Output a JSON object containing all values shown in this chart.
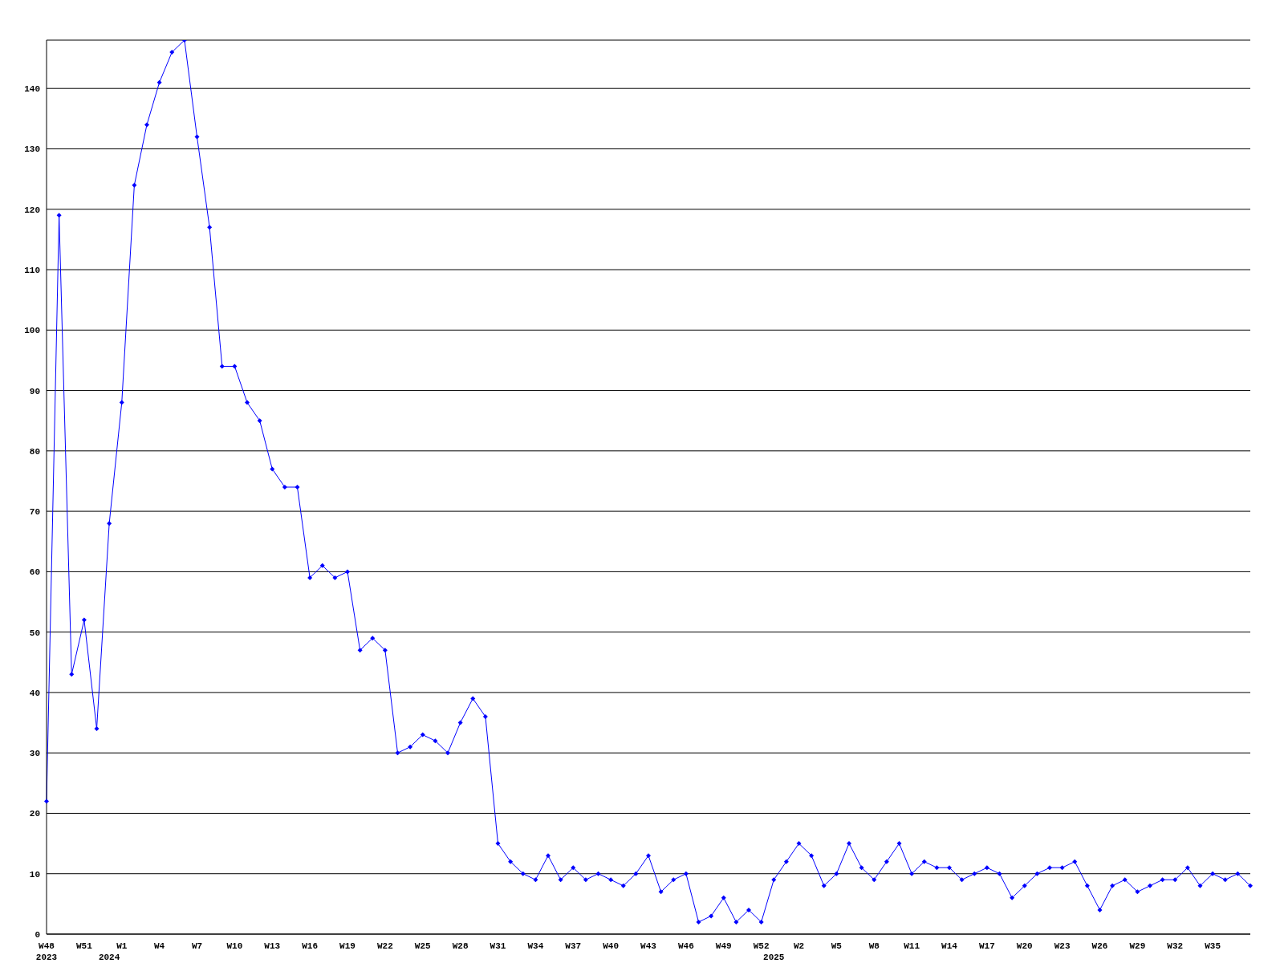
{
  "chart_data": {
    "type": "line",
    "categories": [
      "W48\n2023",
      null,
      null,
      "W51",
      null,
      "\n2024",
      "W1",
      null,
      null,
      "W4",
      null,
      null,
      "W7",
      null,
      null,
      "W10",
      null,
      null,
      "W13",
      null,
      null,
      "W16",
      null,
      null,
      "W19",
      null,
      null,
      "W22",
      null,
      null,
      "W25",
      null,
      null,
      "W28",
      null,
      null,
      "W31",
      null,
      null,
      "W34",
      null,
      null,
      "W37",
      null,
      null,
      "W40",
      null,
      null,
      "W43",
      null,
      null,
      "W46",
      null,
      null,
      "W49",
      null,
      null,
      "W52",
      "\n2025",
      null,
      "W2",
      null,
      null,
      "W5",
      null,
      null,
      "W8",
      null,
      null,
      "W11",
      null,
      null,
      "W14",
      null,
      null,
      "W17",
      null,
      null,
      "W20",
      null,
      null,
      "W23",
      null,
      null,
      "W26",
      null,
      null,
      "W29",
      null,
      null,
      "W32",
      null,
      null,
      "W35",
      null,
      null,
      null
    ],
    "series": [
      {
        "color": "#0000ff",
        "values": [
          22,
          119,
          43,
          52,
          34,
          68,
          88,
          124,
          134,
          141,
          146,
          148,
          132,
          117,
          94,
          94,
          88,
          85,
          77,
          74,
          74,
          59,
          61,
          59,
          60,
          47,
          49,
          47,
          30,
          31,
          33,
          32,
          30,
          35,
          39,
          36,
          15,
          12,
          10,
          9,
          13,
          9,
          11,
          9,
          10,
          9,
          8,
          10,
          13,
          7,
          9,
          10,
          2,
          3,
          6,
          2,
          4,
          2,
          9,
          12,
          15,
          13,
          8,
          10,
          15,
          11,
          9,
          12,
          15,
          10,
          12,
          11,
          11,
          9,
          10,
          11,
          10,
          6,
          8,
          10,
          11,
          11,
          12,
          8,
          4,
          8,
          9,
          7,
          8,
          9,
          9,
          11,
          8,
          10,
          9,
          10,
          8
        ]
      }
    ],
    "ylim": [
      0,
      148
    ],
    "yticks": [
      0,
      10,
      20,
      30,
      40,
      50,
      60,
      70,
      80,
      90,
      100,
      110,
      120,
      130,
      140
    ],
    "grid": "y",
    "marker": "diamond",
    "line_style": "solid"
  }
}
